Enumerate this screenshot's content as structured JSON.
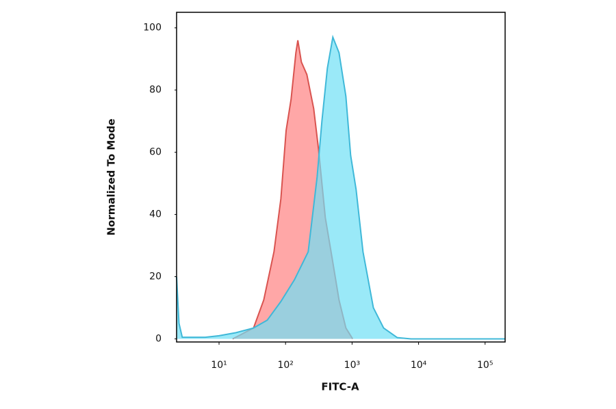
{
  "chart_data": {
    "type": "area",
    "xscale": "log",
    "xlabel": "FITC-A",
    "ylabel": "Normalized To Mode",
    "xlim": [
      2.3,
      200000
    ],
    "ylim": [
      -1,
      105
    ],
    "xticks": [
      {
        "value": 10,
        "label": "10¹"
      },
      {
        "value": 100,
        "label": "10²"
      },
      {
        "value": 1000,
        "label": "10³"
      },
      {
        "value": 10000,
        "label": "10⁴"
      },
      {
        "value": 100000,
        "label": "10⁵"
      }
    ],
    "yticks": [
      0,
      20,
      40,
      60,
      80,
      100
    ],
    "series": [
      {
        "color": "#d9534f",
        "fill": "#ff8a8a",
        "x": [
          16,
          33,
          47,
          67,
          85,
          102,
          121,
          143,
          153,
          173,
          209,
          265,
          313,
          396,
          501,
          637,
          807,
          1020
        ],
        "values": [
          0,
          3.5,
          12.5,
          28,
          45,
          67,
          77,
          92,
          96,
          89,
          85,
          74,
          61,
          39,
          26,
          12.5,
          3.5,
          0
        ]
      },
      {
        "color": "#3fb8d8",
        "fill": "#6fdff5",
        "x": [
          2.3,
          2.5,
          2.8,
          6.2,
          10,
          18,
          33,
          53,
          85,
          136,
          219,
          298,
          352,
          425,
          514,
          637,
          807,
          952,
          1150,
          1460,
          2090,
          2980,
          4790,
          7700,
          200000
        ],
        "values": [
          20,
          5,
          0.5,
          0.5,
          1,
          2,
          3.5,
          6,
          12,
          19,
          28,
          52,
          70,
          87,
          97,
          92,
          78,
          59,
          48,
          28,
          10,
          3.5,
          0.4,
          0,
          0
        ]
      }
    ]
  }
}
